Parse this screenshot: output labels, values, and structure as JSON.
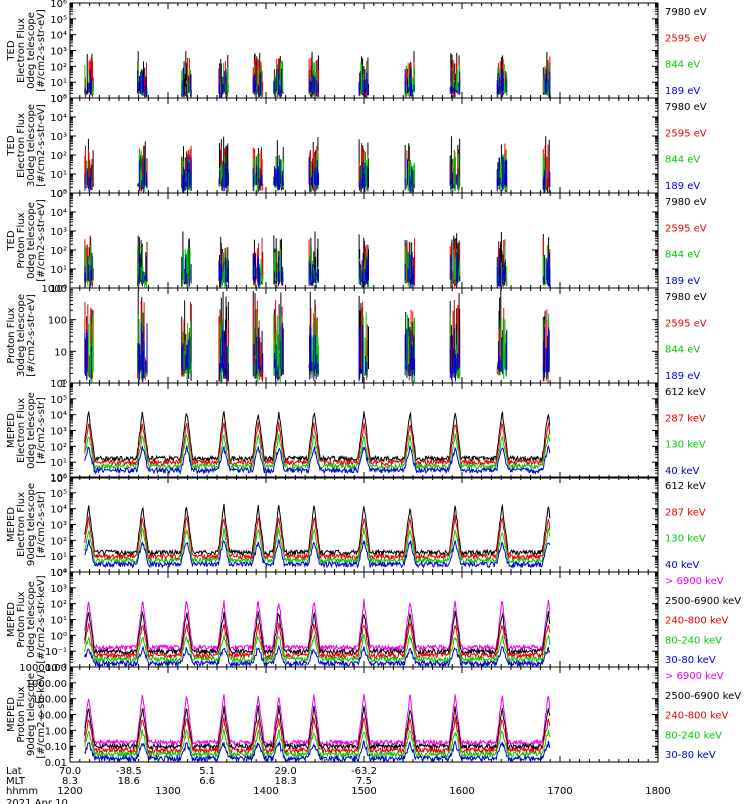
{
  "figure": {
    "date_label": "2021 Apr 10",
    "axis_row_labels": [
      "Lat",
      "MLT",
      "hhmm"
    ],
    "lat_ticks": [
      "70.0",
      "-38.5",
      "5.1",
      "29.0",
      "-63.2"
    ],
    "mlt_ticks": [
      "8.3",
      "18.6",
      "6.6",
      "18.3",
      "7.5"
    ],
    "time_ticks": [
      "1200",
      "1300",
      "1400",
      "1500",
      "1600",
      "1700",
      "1800"
    ]
  },
  "chart_data": [
    {
      "type": "scatter",
      "instrument": "TED",
      "ylabel_lines": [
        "TED",
        "Electron Flux",
        "0deg telescope",
        "[#/cm2-s-str-eV]"
      ],
      "yscale": "log",
      "ylim": [
        1,
        1000000
      ],
      "ytick_labels": [
        "10⁰",
        "10¹",
        "10²",
        "10³",
        "10⁴",
        "10⁵",
        "10⁶"
      ],
      "xlim": [
        1200,
        1800
      ],
      "series": [
        {
          "name": "7980 eV",
          "color": "#000000"
        },
        {
          "name": "2595 eV",
          "color": "#ee0000"
        },
        {
          "name": "844 eV",
          "color": "#00cc00"
        },
        {
          "name": "189 eV",
          "color": "#0000cc"
        }
      ]
    },
    {
      "type": "scatter",
      "instrument": "TED",
      "ylabel_lines": [
        "TED",
        "Electron Flux",
        "30deg telescope",
        "[#/cm2-s-str-eV]"
      ],
      "yscale": "log",
      "ylim": [
        1,
        100000
      ],
      "ytick_labels": [
        "10⁰",
        "10¹",
        "10²",
        "10³",
        "10⁴",
        "10⁵"
      ],
      "xlim": [
        1200,
        1800
      ],
      "series": [
        {
          "name": "7980 eV",
          "color": "#000000"
        },
        {
          "name": "2595 eV",
          "color": "#ee0000"
        },
        {
          "name": "844 eV",
          "color": "#00cc00"
        },
        {
          "name": "189 eV",
          "color": "#0000cc"
        }
      ]
    },
    {
      "type": "scatter",
      "instrument": "TED",
      "ylabel_lines": [
        "TED",
        "Proton Flux",
        "0deg telescope",
        "[#/cm2-s-str-eV]"
      ],
      "yscale": "log",
      "ylim": [
        1,
        100000
      ],
      "ytick_labels": [
        "10⁰",
        "10¹",
        "10²",
        "10³",
        "10⁴",
        "10⁵"
      ],
      "xlim": [
        1200,
        1800
      ],
      "series": [
        {
          "name": "7980 eV",
          "color": "#000000"
        },
        {
          "name": "2595 eV",
          "color": "#ee0000"
        },
        {
          "name": "844 eV",
          "color": "#00cc00"
        },
        {
          "name": "189 eV",
          "color": "#0000cc"
        }
      ]
    },
    {
      "type": "scatter",
      "instrument": "TED",
      "ylabel_lines": [
        "Proton Flux",
        "30deg telescope",
        "[#/cm2-s-str-eV]"
      ],
      "yscale": "log",
      "ylim": [
        1,
        1000
      ],
      "ytick_labels": [
        "1",
        "10",
        "100",
        "1000"
      ],
      "xlim": [
        1200,
        1800
      ],
      "series": [
        {
          "name": "7980 eV",
          "color": "#000000"
        },
        {
          "name": "2595 eV",
          "color": "#ee0000"
        },
        {
          "name": "844 eV",
          "color": "#00cc00"
        },
        {
          "name": "189 eV",
          "color": "#0000cc"
        }
      ]
    },
    {
      "type": "line",
      "instrument": "MEPED",
      "ylabel_lines": [
        "MEPED",
        "Electron Flux",
        "0deg telescope",
        "[#/cm2-s-str]"
      ],
      "yscale": "log",
      "ylim": [
        1,
        1000000
      ],
      "ytick_labels": [
        "10⁰",
        "10¹",
        "10²",
        "10³",
        "10⁴",
        "10⁵",
        "10⁶"
      ],
      "xlim": [
        1200,
        1800
      ],
      "series": [
        {
          "name": "612 keV",
          "color": "#000000"
        },
        {
          "name": "287 keV",
          "color": "#ee0000"
        },
        {
          "name": "130 keV",
          "color": "#00cc00"
        },
        {
          "name": "40 keV",
          "color": "#0000cc"
        }
      ]
    },
    {
      "type": "line",
      "instrument": "MEPED",
      "ylabel_lines": [
        "MEPED",
        "Electron Flux",
        "90deg telescope",
        "[#/cm2-s-str]"
      ],
      "yscale": "log",
      "ylim": [
        1,
        1000000
      ],
      "ytick_labels": [
        "10⁰",
        "10¹",
        "10²",
        "10³",
        "10⁴",
        "10⁵",
        "10⁶"
      ],
      "xlim": [
        1200,
        1800
      ],
      "series": [
        {
          "name": "612 keV",
          "color": "#000000"
        },
        {
          "name": "287 keV",
          "color": "#ee0000"
        },
        {
          "name": "130 keV",
          "color": "#00cc00"
        },
        {
          "name": "40 keV",
          "color": "#0000cc"
        }
      ]
    },
    {
      "type": "line",
      "instrument": "MEPED",
      "ylabel_lines": [
        "MEPED",
        "Proton Flux",
        "0deg telescope",
        "[#/cm2-s-str-keV]"
      ],
      "yscale": "log",
      "ylim": [
        0.01,
        10000
      ],
      "ytick_labels": [
        "10⁻²",
        "10⁻¹",
        "10⁰",
        "10¹",
        "10²",
        "10³",
        "10⁴"
      ],
      "xlim": [
        1200,
        1800
      ],
      "series": [
        {
          "name": "> 6900 keV",
          "color": "#ee00ee"
        },
        {
          "name": "2500-6900 keV",
          "color": "#000000"
        },
        {
          "name": "240-800 keV",
          "color": "#ee0000"
        },
        {
          "name": "80-240 keV",
          "color": "#00cc00"
        },
        {
          "name": "30-80 keV",
          "color": "#0000cc"
        }
      ]
    },
    {
      "type": "line",
      "instrument": "MEPED",
      "ylabel_lines": [
        "MEPED",
        "Proton Flux",
        "90deg telescope",
        "[#/cm2-s-str-keV]"
      ],
      "yscale": "log",
      "ylim": [
        0.01,
        10000
      ],
      "ytick_labels": [
        "0.01",
        "0.10",
        "1.00",
        "10.00",
        "100.00",
        "1000.00",
        "10000.00"
      ],
      "xlim": [
        1200,
        1800
      ],
      "series": [
        {
          "name": "> 6900 keV",
          "color": "#ee00ee"
        },
        {
          "name": "2500-6900 keV",
          "color": "#000000"
        },
        {
          "name": "240-800 keV",
          "color": "#ee0000"
        },
        {
          "name": "80-240 keV",
          "color": "#00cc00"
        },
        {
          "name": "30-80 keV",
          "color": "#0000cc"
        }
      ]
    }
  ]
}
